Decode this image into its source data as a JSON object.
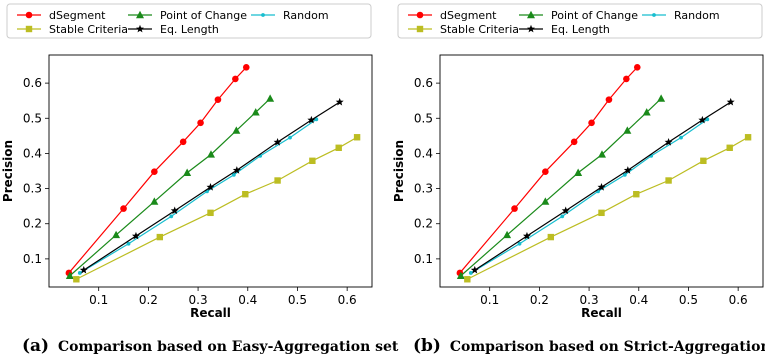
{
  "chart_data": [
    {
      "type": "line",
      "xlabel": "Recall",
      "ylabel": "Precision",
      "xlim": [
        0.0,
        0.65
      ],
      "ylim": [
        0.02,
        0.68
      ],
      "xticks": [
        0.1,
        0.2,
        0.3,
        0.4,
        0.5,
        0.6
      ],
      "yticks": [
        0.1,
        0.2,
        0.3,
        0.4,
        0.5,
        0.6
      ],
      "legend_position": "top",
      "series": [
        {
          "name": "dSegment",
          "color": "#ff0000",
          "marker": "circle",
          "x": [
            0.04,
            0.15,
            0.212,
            0.27,
            0.305,
            0.34,
            0.375,
            0.397
          ],
          "y": [
            0.06,
            0.243,
            0.348,
            0.433,
            0.487,
            0.553,
            0.612,
            0.645
          ]
        },
        {
          "name": "Point of Change",
          "color": "#1a8a1a",
          "marker": "triangle",
          "x": [
            0.042,
            0.135,
            0.212,
            0.278,
            0.326,
            0.377,
            0.416,
            0.445
          ],
          "y": [
            0.052,
            0.168,
            0.263,
            0.345,
            0.397,
            0.465,
            0.517,
            0.556
          ]
        },
        {
          "name": "Random",
          "color": "#17becf",
          "marker": "dot",
          "x": [
            0.062,
            0.16,
            0.246,
            0.318,
            0.372,
            0.425,
            0.485,
            0.538
          ],
          "y": [
            0.06,
            0.143,
            0.221,
            0.292,
            0.339,
            0.393,
            0.445,
            0.497
          ]
        },
        {
          "name": "Stable Criteria",
          "color": "#bcbd22",
          "marker": "square",
          "x": [
            0.055,
            0.223,
            0.325,
            0.395,
            0.46,
            0.53,
            0.583,
            0.62
          ],
          "y": [
            0.042,
            0.162,
            0.231,
            0.284,
            0.323,
            0.379,
            0.416,
            0.446
          ]
        },
        {
          "name": "Eq. Length",
          "color": "#000000",
          "marker": "star",
          "x": [
            0.07,
            0.175,
            0.253,
            0.325,
            0.378,
            0.46,
            0.528,
            0.585
          ],
          "y": [
            0.068,
            0.165,
            0.237,
            0.304,
            0.352,
            0.432,
            0.495,
            0.546
          ]
        }
      ],
      "caption_label": "(a)",
      "caption": "Comparison based on Easy-Aggregation set"
    },
    {
      "type": "line",
      "xlabel": "Recall",
      "ylabel": "Precision",
      "xlim": [
        0.0,
        0.65
      ],
      "ylim": [
        0.02,
        0.68
      ],
      "xticks": [
        0.1,
        0.2,
        0.3,
        0.4,
        0.5,
        0.6
      ],
      "yticks": [
        0.1,
        0.2,
        0.3,
        0.4,
        0.5,
        0.6
      ],
      "legend_position": "top",
      "series": [
        {
          "name": "dSegment",
          "color": "#ff0000",
          "marker": "circle",
          "x": [
            0.04,
            0.15,
            0.212,
            0.27,
            0.305,
            0.34,
            0.375,
            0.397
          ],
          "y": [
            0.06,
            0.243,
            0.348,
            0.433,
            0.487,
            0.553,
            0.612,
            0.645
          ]
        },
        {
          "name": "Point of Change",
          "color": "#1a8a1a",
          "marker": "triangle",
          "x": [
            0.042,
            0.135,
            0.212,
            0.278,
            0.326,
            0.377,
            0.416,
            0.445
          ],
          "y": [
            0.052,
            0.168,
            0.263,
            0.345,
            0.397,
            0.465,
            0.517,
            0.556
          ]
        },
        {
          "name": "Random",
          "color": "#17becf",
          "marker": "dot",
          "x": [
            0.062,
            0.16,
            0.246,
            0.318,
            0.372,
            0.425,
            0.485,
            0.538
          ],
          "y": [
            0.06,
            0.143,
            0.221,
            0.292,
            0.339,
            0.393,
            0.445,
            0.497
          ]
        },
        {
          "name": "Stable Criteria",
          "color": "#bcbd22",
          "marker": "square",
          "x": [
            0.055,
            0.223,
            0.325,
            0.395,
            0.46,
            0.53,
            0.583,
            0.62
          ],
          "y": [
            0.042,
            0.162,
            0.231,
            0.284,
            0.323,
            0.379,
            0.416,
            0.446
          ]
        },
        {
          "name": "Eq. Length",
          "color": "#000000",
          "marker": "star",
          "x": [
            0.07,
            0.175,
            0.253,
            0.325,
            0.378,
            0.46,
            0.528,
            0.585
          ],
          "y": [
            0.068,
            0.165,
            0.237,
            0.304,
            0.352,
            0.432,
            0.495,
            0.546
          ]
        }
      ],
      "caption_label": "(b)",
      "caption": "Comparison based on Strict-Aggregation set"
    }
  ]
}
